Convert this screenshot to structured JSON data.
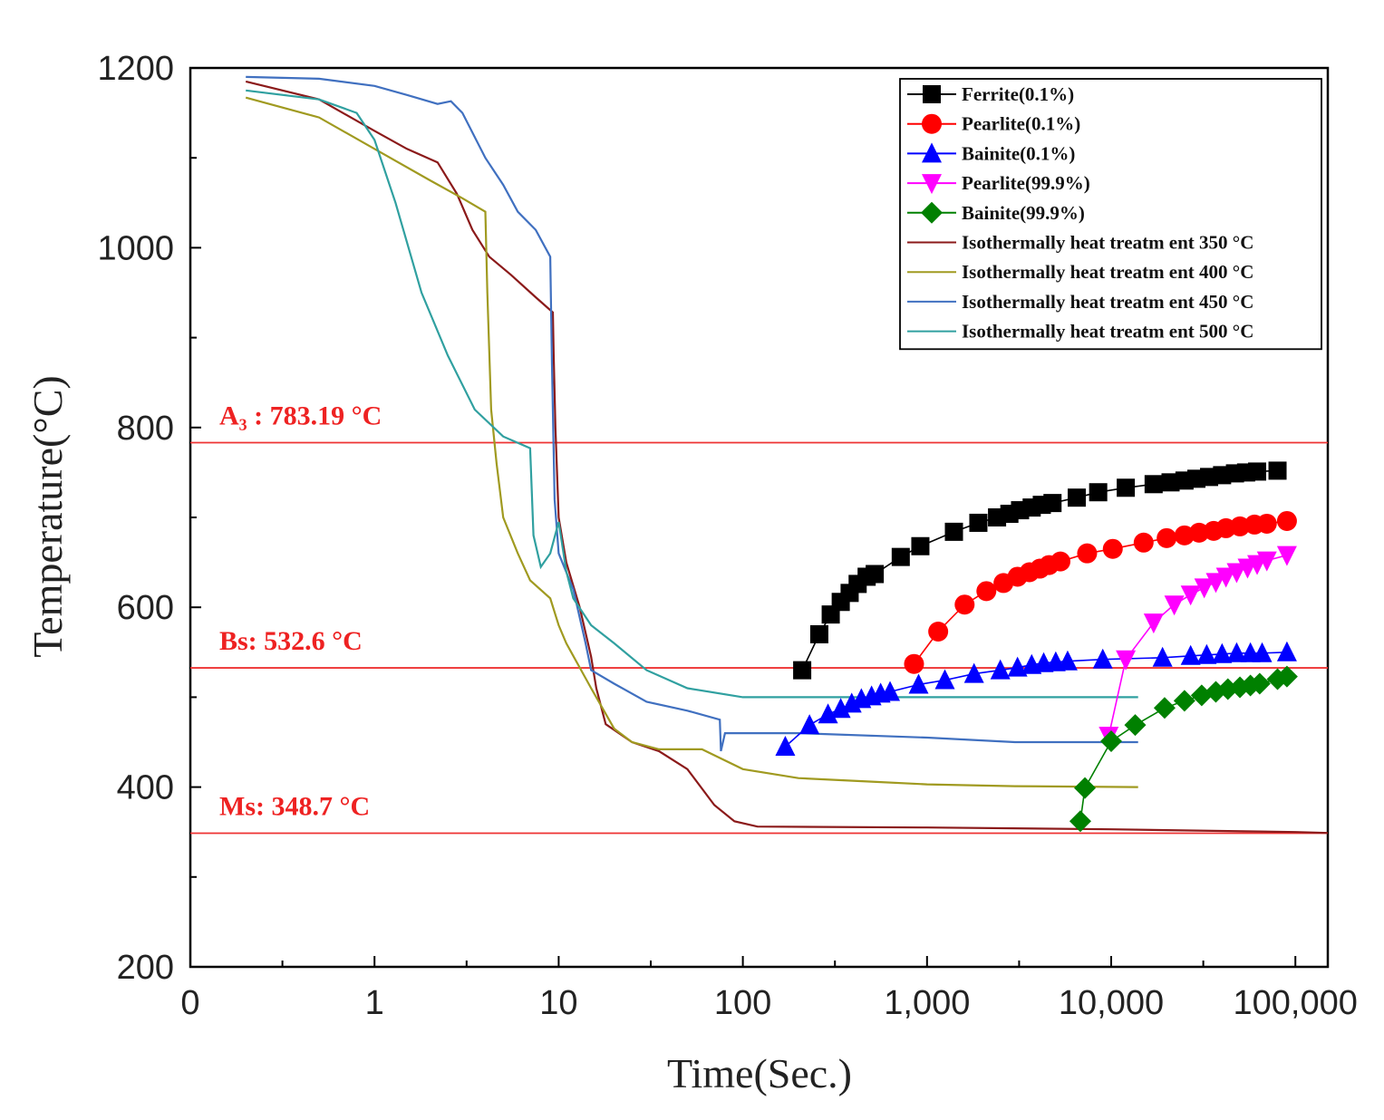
{
  "chart_data": {
    "type": "line",
    "xlabel": "Time(Sec.)",
    "ylabel": "Temperature(°C)",
    "x_scale": "log",
    "xlim": [
      0.1,
      150000
    ],
    "ylim": [
      200,
      1200
    ],
    "x_ticks": [
      {
        "value": 0.1,
        "label": "0"
      },
      {
        "value": 1,
        "label": "1"
      },
      {
        "value": 10,
        "label": "10"
      },
      {
        "value": 100,
        "label": "100"
      },
      {
        "value": 1000,
        "label": "1,000"
      },
      {
        "value": 10000,
        "label": "10,000"
      },
      {
        "value": 100000,
        "label": "100,000"
      }
    ],
    "y_ticks": [
      {
        "value": 200,
        "label": "200"
      },
      {
        "value": 400,
        "label": "400"
      },
      {
        "value": 600,
        "label": "600"
      },
      {
        "value": 800,
        "label": "800"
      },
      {
        "value": 1000,
        "label": "1000"
      },
      {
        "value": 1200,
        "label": "1200"
      }
    ],
    "grid": false,
    "legend_position": "top-right",
    "reference_lines": [
      {
        "label": "A₃ : 783.19 °C",
        "y": 783.19,
        "color": "#ee3333"
      },
      {
        "label": "Bs: 532.6 °C",
        "y": 532.6,
        "color": "#ee3333"
      },
      {
        "label": "Ms: 348.7 °C",
        "y": 348.7,
        "color": "#ee3333"
      }
    ],
    "series": [
      {
        "name": "Ferrite(0.1%)",
        "color": "#000000",
        "marker": "square",
        "points": [
          [
            210,
            530
          ],
          [
            260,
            570
          ],
          [
            300,
            592
          ],
          [
            340,
            606
          ],
          [
            380,
            616
          ],
          [
            420,
            626
          ],
          [
            470,
            634
          ],
          [
            520,
            637
          ],
          [
            720,
            656
          ],
          [
            920,
            668
          ],
          [
            1400,
            684
          ],
          [
            1900,
            694
          ],
          [
            2400,
            700
          ],
          [
            2800,
            704
          ],
          [
            3200,
            708
          ],
          [
            3700,
            711
          ],
          [
            4200,
            714
          ],
          [
            4800,
            716
          ],
          [
            6500,
            722
          ],
          [
            8500,
            728
          ],
          [
            12000,
            733
          ],
          [
            17000,
            737
          ],
          [
            21000,
            739
          ],
          [
            25000,
            741
          ],
          [
            29000,
            743
          ],
          [
            34000,
            745
          ],
          [
            40000,
            747
          ],
          [
            47000,
            749
          ],
          [
            54000,
            750
          ],
          [
            62000,
            751
          ],
          [
            80000,
            752
          ]
        ]
      },
      {
        "name": "Pearlite(0.1%)",
        "color": "#ff0000",
        "marker": "circle",
        "points": [
          [
            850,
            537
          ],
          [
            1150,
            573
          ],
          [
            1600,
            603
          ],
          [
            2100,
            618
          ],
          [
            2600,
            627
          ],
          [
            3100,
            634
          ],
          [
            3600,
            639
          ],
          [
            4100,
            643
          ],
          [
            4600,
            647
          ],
          [
            5300,
            651
          ],
          [
            7400,
            660
          ],
          [
            10200,
            665
          ],
          [
            15000,
            672
          ],
          [
            20000,
            677
          ],
          [
            25000,
            680
          ],
          [
            30000,
            683
          ],
          [
            36000,
            685
          ],
          [
            42000,
            688
          ],
          [
            50000,
            690
          ],
          [
            60000,
            692
          ],
          [
            70000,
            693
          ],
          [
            90000,
            696
          ]
        ]
      },
      {
        "name": "Bainite(0.1%)",
        "color": "#0000ff",
        "marker": "triangle-up",
        "points": [
          [
            170,
            445
          ],
          [
            230,
            469
          ],
          [
            290,
            481
          ],
          [
            340,
            487
          ],
          [
            390,
            493
          ],
          [
            440,
            498
          ],
          [
            500,
            501
          ],
          [
            560,
            504
          ],
          [
            630,
            506
          ],
          [
            900,
            514
          ],
          [
            1250,
            519
          ],
          [
            1800,
            526
          ],
          [
            2500,
            530
          ],
          [
            3100,
            533
          ],
          [
            3700,
            536
          ],
          [
            4300,
            538
          ],
          [
            5000,
            539
          ],
          [
            5800,
            540
          ],
          [
            9000,
            542
          ],
          [
            19000,
            544
          ],
          [
            27000,
            546
          ],
          [
            33000,
            547
          ],
          [
            40000,
            548
          ],
          [
            48000,
            549
          ],
          [
            57000,
            549
          ],
          [
            66000,
            549
          ],
          [
            90000,
            550
          ]
        ]
      },
      {
        "name": "Pearlite(99.9%)",
        "color": "#ff00ff",
        "marker": "triangle-down",
        "points": [
          [
            9700,
            457
          ],
          [
            12000,
            542
          ],
          [
            17000,
            583
          ],
          [
            22000,
            603
          ],
          [
            27000,
            614
          ],
          [
            32000,
            622
          ],
          [
            37000,
            628
          ],
          [
            42000,
            634
          ],
          [
            48000,
            639
          ],
          [
            55000,
            644
          ],
          [
            62000,
            648
          ],
          [
            70000,
            652
          ],
          [
            90000,
            658
          ]
        ]
      },
      {
        "name": "Bainite(99.9%)",
        "color": "#008000",
        "marker": "diamond",
        "points": [
          [
            6800,
            362
          ],
          [
            7200,
            399
          ],
          [
            10000,
            451
          ],
          [
            13500,
            469
          ],
          [
            19500,
            488
          ],
          [
            25000,
            496
          ],
          [
            31000,
            502
          ],
          [
            37000,
            506
          ],
          [
            43000,
            509
          ],
          [
            50000,
            511
          ],
          [
            57000,
            513
          ],
          [
            64000,
            515
          ],
          [
            80000,
            520
          ],
          [
            90000,
            523
          ]
        ]
      },
      {
        "name": "Isothermally heat treatm ent 350 °C",
        "color": "#8b1a1a",
        "marker": "none",
        "points": [
          [
            0.2,
            1185
          ],
          [
            0.5,
            1165
          ],
          [
            1,
            1130
          ],
          [
            1.5,
            1110
          ],
          [
            2.2,
            1095
          ],
          [
            2.8,
            1060
          ],
          [
            3.4,
            1020
          ],
          [
            4.2,
            990
          ],
          [
            5.5,
            970
          ],
          [
            7.5,
            945
          ],
          [
            9.3,
            928
          ],
          [
            9.4,
            880
          ],
          [
            9.6,
            800
          ],
          [
            10,
            700
          ],
          [
            11,
            650
          ],
          [
            13,
            600
          ],
          [
            15,
            545
          ],
          [
            16,
            510
          ],
          [
            18,
            470
          ],
          [
            25,
            450
          ],
          [
            35,
            440
          ],
          [
            50,
            420
          ],
          [
            70,
            380
          ],
          [
            90,
            362
          ],
          [
            120,
            356
          ],
          [
            1000,
            355
          ],
          [
            10000,
            353
          ],
          [
            100000,
            350
          ],
          [
            150000,
            349
          ]
        ]
      },
      {
        "name": "Isothermally heat treatm ent 400 °C",
        "color": "#a09a20",
        "marker": "none",
        "points": [
          [
            0.2,
            1167
          ],
          [
            0.5,
            1145
          ],
          [
            1,
            1110
          ],
          [
            2,
            1075
          ],
          [
            3,
            1055
          ],
          [
            4,
            1040
          ],
          [
            4.1,
            950
          ],
          [
            4.3,
            820
          ],
          [
            4.6,
            760
          ],
          [
            5,
            700
          ],
          [
            6,
            660
          ],
          [
            7,
            630
          ],
          [
            9,
            610
          ],
          [
            10,
            580
          ],
          [
            11,
            560
          ],
          [
            15,
            510
          ],
          [
            20,
            465
          ],
          [
            25,
            450
          ],
          [
            35,
            442
          ],
          [
            60,
            442
          ],
          [
            100,
            420
          ],
          [
            200,
            410
          ],
          [
            500,
            406
          ],
          [
            1000,
            403
          ],
          [
            3000,
            401
          ],
          [
            14000,
            400
          ]
        ]
      },
      {
        "name": "Isothermally heat treatm ent 450 °C",
        "color": "#4070c0",
        "marker": "none",
        "points": [
          [
            0.2,
            1190
          ],
          [
            0.5,
            1188
          ],
          [
            1,
            1180
          ],
          [
            1.5,
            1170
          ],
          [
            2.2,
            1160
          ],
          [
            2.6,
            1163
          ],
          [
            3,
            1150
          ],
          [
            4,
            1100
          ],
          [
            5,
            1070
          ],
          [
            6,
            1040
          ],
          [
            7.5,
            1020
          ],
          [
            9,
            990
          ],
          [
            9.2,
            870
          ],
          [
            9.5,
            720
          ],
          [
            10,
            660
          ],
          [
            12,
            620
          ],
          [
            14,
            560
          ],
          [
            15,
            530
          ],
          [
            20,
            515
          ],
          [
            30,
            495
          ],
          [
            50,
            485
          ],
          [
            75,
            475
          ],
          [
            76,
            440
          ],
          [
            80,
            460
          ],
          [
            200,
            460
          ],
          [
            1000,
            455
          ],
          [
            3000,
            450
          ],
          [
            14000,
            450
          ]
        ]
      },
      {
        "name": "Isothermally heat treatm ent 500 °C",
        "color": "#30a0a0",
        "marker": "none",
        "points": [
          [
            0.2,
            1175
          ],
          [
            0.5,
            1165
          ],
          [
            0.8,
            1150
          ],
          [
            1,
            1120
          ],
          [
            1.3,
            1050
          ],
          [
            1.8,
            950
          ],
          [
            2.5,
            880
          ],
          [
            3.5,
            820
          ],
          [
            5,
            790
          ],
          [
            7,
            777
          ],
          [
            7.3,
            680
          ],
          [
            8,
            645
          ],
          [
            9,
            660
          ],
          [
            10,
            695
          ],
          [
            11,
            640
          ],
          [
            12,
            610
          ],
          [
            15,
            580
          ],
          [
            20,
            560
          ],
          [
            30,
            530
          ],
          [
            50,
            510
          ],
          [
            100,
            500
          ],
          [
            1000,
            500
          ],
          [
            14000,
            500
          ]
        ]
      }
    ]
  }
}
